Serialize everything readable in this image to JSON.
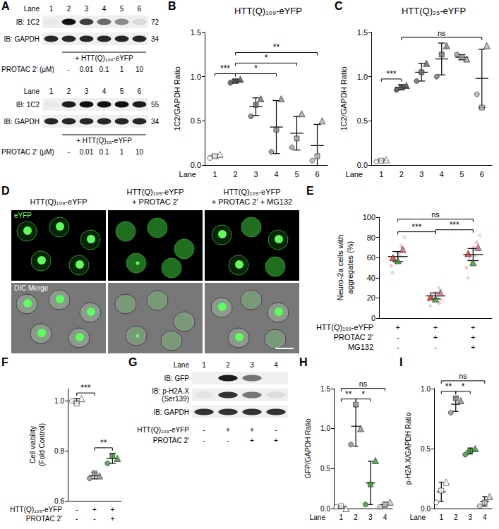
{
  "chart_data": [
    {
      "panel": "B",
      "type": "scatter",
      "title": "HTT(Q)₁₀₉-eYFP",
      "x_label": "Lane",
      "y_label": "1C2/GAPDH Ratio",
      "categories": [
        "1",
        "2",
        "3",
        "4",
        "5",
        "6"
      ],
      "colors": [
        "#ffffff",
        "#4d4d4d",
        "#6e6e6e",
        "#8a8a8a",
        "#a0a0a0",
        "#b5b5b5"
      ],
      "ylim": [
        0,
        1.5
      ],
      "yticks": [
        {
          "value": 0,
          "label": "0.0"
        },
        0.5,
        {
          "value": 1,
          "label": "1.0"
        },
        1.5
      ],
      "grid": false,
      "series": [
        {
          "marker": "circle",
          "values": [
            0.08,
            0.93,
            0.55,
            0.15,
            0.2,
            0.05
          ]
        },
        {
          "marker": "square",
          "values": [
            0.1,
            0.95,
            0.68,
            0.4,
            0.3,
            0.1
          ]
        },
        {
          "marker": "triangle",
          "values": [
            0.12,
            0.97,
            0.75,
            0.75,
            0.58,
            0.5
          ]
        }
      ],
      "means": [
        0.1,
        0.95,
        0.66,
        0.43,
        0.36,
        0.22
      ],
      "errors": [
        0.02,
        0.02,
        0.1,
        0.3,
        0.19,
        0.24
      ],
      "significance": [
        {
          "text": "***",
          "between": [
            1,
            2
          ]
        },
        {
          "text": "*",
          "between": [
            2,
            4
          ]
        },
        {
          "text": "*",
          "between": [
            2,
            5
          ]
        },
        {
          "text": "**",
          "between": [
            2,
            6
          ]
        }
      ]
    },
    {
      "panel": "C",
      "type": "scatter",
      "title": "HTT(Q)₂₅-eYFP",
      "x_label": "Lane",
      "y_label": "1C2/GAPDH Ratio",
      "categories": [
        "1",
        "2",
        "3",
        "4",
        "5",
        "6"
      ],
      "colors": [
        "#ffffff",
        "#444444",
        "#666666",
        "#7a7a7a",
        "#999999",
        "#b0b0b0"
      ],
      "ylim": [
        0,
        1.5
      ],
      "yticks": [
        {
          "value": 0,
          "label": "0.0"
        },
        0.5,
        {
          "value": 1,
          "label": "1.0"
        },
        1.5
      ],
      "grid": false,
      "series": [
        {
          "marker": "circle",
          "values": [
            0.04,
            0.85,
            0.95,
            1.0,
            1.25,
            0.8
          ]
        },
        {
          "marker": "square",
          "values": [
            0.05,
            0.88,
            1.05,
            1.25,
            1.22,
            0.65
          ]
        },
        {
          "marker": "triangle",
          "values": [
            0.06,
            0.9,
            1.15,
            1.35,
            1.2,
            1.35
          ]
        }
      ],
      "means": [
        0.05,
        0.88,
        1.05,
        1.2,
        1.22,
        0.98
      ],
      "errors": [
        0.01,
        0.03,
        0.1,
        0.18,
        0.03,
        0.33
      ],
      "significance": [
        {
          "text": "***",
          "between": [
            1,
            2
          ]
        },
        {
          "text": "ns",
          "between": [
            2,
            6
          ]
        }
      ]
    },
    {
      "panel": "E",
      "type": "scatter",
      "y_label": "Neuro-2a cells with aggregates (%)",
      "conditions": [
        {
          "label": "HTT(Q)₁₀₉-eYFP",
          "values": [
            "+",
            "+",
            "+"
          ]
        },
        {
          "label": "PROTAC 2'",
          "values": [
            "-",
            "+",
            "+"
          ]
        },
        {
          "label": "MG132",
          "values": [
            "-",
            "-",
            "+"
          ]
        }
      ],
      "ylim": [
        0,
        100
      ],
      "yticks": [
        0,
        20,
        40,
        60,
        80,
        100
      ],
      "grid": false,
      "series": [
        {
          "marker": "circle",
          "color": "#f5b5b2",
          "values": [
            [
              52,
              58,
              65,
              70
            ],
            [
              18,
              22,
              25,
              15
            ],
            [
              50,
              62,
              70,
              75
            ]
          ]
        },
        {
          "marker": "circle",
          "color": "#b9e3b4",
          "values": [
            [
              45,
              55,
              62,
              68
            ],
            [
              12,
              18,
              20,
              28
            ],
            [
              40,
              55,
              62,
              70
            ]
          ]
        },
        {
          "marker": "circle",
          "color": "#f3c6de",
          "values": [
            [
              60,
              65,
              72,
              80
            ],
            [
              20,
              25,
              30,
              18
            ],
            [
              58,
              68,
              75,
              82
            ]
          ]
        },
        {
          "marker": "triangle",
          "color": "#e03a35",
          "values": [
            60,
            21,
            64
          ]
        },
        {
          "marker": "triangle",
          "color": "#2ca02c",
          "values": [
            57,
            19,
            55
          ]
        },
        {
          "marker": "triangle",
          "color": "#d9669b",
          "values": [
            68,
            25,
            70
          ]
        }
      ],
      "means": [
        61,
        22,
        63
      ],
      "errors": [
        5,
        3,
        6
      ],
      "significance": [
        {
          "text": "***",
          "between": [
            1,
            2
          ]
        },
        {
          "text": "***",
          "between": [
            2,
            3
          ]
        },
        {
          "text": "ns",
          "between": [
            1,
            3
          ]
        }
      ]
    },
    {
      "panel": "F",
      "type": "scatter",
      "y_label": "Cell viability (Fold Control)",
      "conditions": [
        {
          "label": "HTT(Q)₁₀₉-eYFP",
          "values": [
            "-",
            "+",
            "+"
          ]
        },
        {
          "label": "PROTAC 2'",
          "values": [
            "-",
            "-",
            "+"
          ]
        }
      ],
      "colors": [
        "#ffffff",
        "#8c8c8c",
        "#3c9a3c"
      ],
      "ylim": [
        0.6,
        1.05
      ],
      "yticks": [
        0.6,
        0.8,
        {
          "value": 1,
          "label": "1.0"
        }
      ],
      "grid": false,
      "series": [
        {
          "marker": "circle",
          "values": [
            1.0,
            0.69,
            0.75
          ]
        },
        {
          "marker": "square",
          "values": [
            0.99,
            0.71,
            0.78
          ]
        },
        {
          "marker": "triangle",
          "values": [
            1.01,
            0.7,
            0.77
          ]
        }
      ],
      "means": [
        1.0,
        0.7,
        0.77
      ],
      "errors": [
        0.01,
        0.012,
        0.02
      ],
      "significance": [
        {
          "text": "***",
          "between": [
            1,
            2
          ]
        },
        {
          "text": "**",
          "between": [
            2,
            3
          ]
        }
      ]
    },
    {
      "panel": "H",
      "type": "scatter",
      "x_label": "Lane",
      "y_label": "GFP/GAPDH Ratio",
      "categories": [
        "1",
        "2",
        "3",
        "4"
      ],
      "colors": [
        "#ffffff",
        "#8c8c8c",
        "#2e9a2e",
        "#c8c8c8"
      ],
      "ylim": [
        0,
        1.5
      ],
      "yticks": [
        {
          "value": 0,
          "label": "0.0"
        },
        0.5,
        {
          "value": 1,
          "label": "1.0"
        },
        1.5
      ],
      "grid": false,
      "series": [
        {
          "marker": "circle",
          "values": [
            0.02,
            0.8,
            0.05,
            0.02
          ]
        },
        {
          "marker": "square",
          "values": [
            0.03,
            1.3,
            0.3,
            0.05
          ]
        },
        {
          "marker": "triangle",
          "values": [
            0.0,
            1.0,
            0.6,
            0.08
          ]
        }
      ],
      "means": [
        0.02,
        1.03,
        0.32,
        0.05
      ],
      "errors": [
        0.015,
        0.25,
        0.27,
        0.03
      ],
      "significance": [
        {
          "text": "**",
          "between": [
            1,
            2
          ]
        },
        {
          "text": "*",
          "between": [
            2,
            3
          ]
        },
        {
          "text": "ns",
          "between": [
            1,
            4
          ]
        }
      ]
    },
    {
      "panel": "I",
      "type": "scatter",
      "x_label": "Lane",
      "y_label": "p-H2A.X/GAPDH Ratio",
      "categories": [
        "1",
        "2",
        "3",
        "4"
      ],
      "colors": [
        "#ffffff",
        "#8c8c8c",
        "#2e9a2e",
        "#c8c8c8"
      ],
      "ylim": [
        0,
        1
      ],
      "yticks": [
        {
          "value": 0,
          "label": "0.0"
        },
        0.5,
        {
          "value": 1,
          "label": "1.0"
        }
      ],
      "grid": false,
      "series": [
        {
          "marker": "circle",
          "values": [
            0.05,
            0.8,
            0.45,
            0.02
          ]
        },
        {
          "marker": "square",
          "values": [
            0.15,
            0.92,
            0.48,
            0.05
          ]
        },
        {
          "marker": "triangle",
          "values": [
            0.22,
            0.9,
            0.5,
            0.1
          ]
        }
      ],
      "means": [
        0.14,
        0.87,
        0.48,
        0.06
      ],
      "errors": [
        0.08,
        0.06,
        0.025,
        0.04
      ],
      "significance": [
        {
          "text": "**",
          "between": [
            1,
            2
          ]
        },
        {
          "text": "*",
          "between": [
            2,
            3
          ]
        },
        {
          "text": "ns",
          "between": [
            1,
            4
          ]
        }
      ]
    }
  ],
  "blots": [
    {
      "panel": "A",
      "blots": [
        {
          "lane_header": "Lane",
          "lanes": [
            "1",
            "2",
            "3",
            "4",
            "5",
            "6"
          ],
          "rows": [
            {
              "label": "IB: 1C2",
              "mw": 72,
              "bands": [
                0.03,
                1,
                0.8,
                0.6,
                0.45,
                0.1
              ]
            },
            {
              "label": "IB: GAPDH",
              "mw": 34,
              "bands": [
                0.9,
                0.9,
                0.9,
                0.9,
                0.9,
                0.9
              ]
            }
          ],
          "conditions": [
            {
              "label": "+ HTT(Q)₁₀₉-eYFP",
              "span": [
                2,
                6
              ]
            },
            {
              "label": "PROTAC 2' (μM)",
              "values": [
                null,
                "-",
                "0.01",
                "0.1",
                "1",
                "10"
              ]
            }
          ]
        },
        {
          "lane_header": "Lane",
          "lanes": [
            "1",
            "2",
            "3",
            "4",
            "5",
            "6"
          ],
          "rows": [
            {
              "label": "IB: 1C2",
              "mw": 55,
              "bands": [
                0.03,
                0.95,
                1,
                1,
                1,
                0.95
              ]
            },
            {
              "label": "IB: GAPDH",
              "mw": 34,
              "bands": [
                0.9,
                0.9,
                0.9,
                0.9,
                0.9,
                0.9
              ]
            }
          ],
          "conditions": [
            {
              "label": "+ HTT(Q)₂₅-eYFP",
              "span": [
                2,
                6
              ]
            },
            {
              "label": "PROTAC 2' (μM)",
              "values": [
                null,
                "-",
                "0.01",
                "0.1",
                "1",
                "10"
              ]
            }
          ]
        }
      ]
    },
    {
      "panel": "G",
      "blots": [
        {
          "lane_header": "Lane",
          "lanes": [
            "1",
            "2",
            "3",
            "4"
          ],
          "rows": [
            {
              "label": "IB: GFP",
              "bands": [
                0,
                0.95,
                0.55,
                0
              ]
            },
            {
              "label": "IB: p-H2A.X (Ser139)",
              "bands": [
                0.05,
                0.85,
                0.55,
                0.08
              ]
            },
            {
              "label": "IB: GAPDH",
              "bands": [
                0.85,
                0.85,
                0.85,
                0.85
              ]
            }
          ],
          "conditions": [
            {
              "label": "HTT(Q)₁₀₉-eYFP",
              "values": [
                "-",
                "+",
                "+",
                "-"
              ]
            },
            {
              "label": "PROTAC 2'",
              "values": [
                "-",
                "-",
                "+",
                "+"
              ]
            }
          ]
        }
      ]
    }
  ],
  "micrographs": {
    "panel": "D",
    "columns": [
      "HTT(Q)₁₀₉-eYFP",
      "HTT(Q)₁₀₉-eYFP + PROTAC 2'",
      "HTT(Q)₁₀₉-eYFP + PROTAC 2' + MG132"
    ],
    "rows": [
      "eYFP",
      "DIC Merge"
    ]
  }
}
